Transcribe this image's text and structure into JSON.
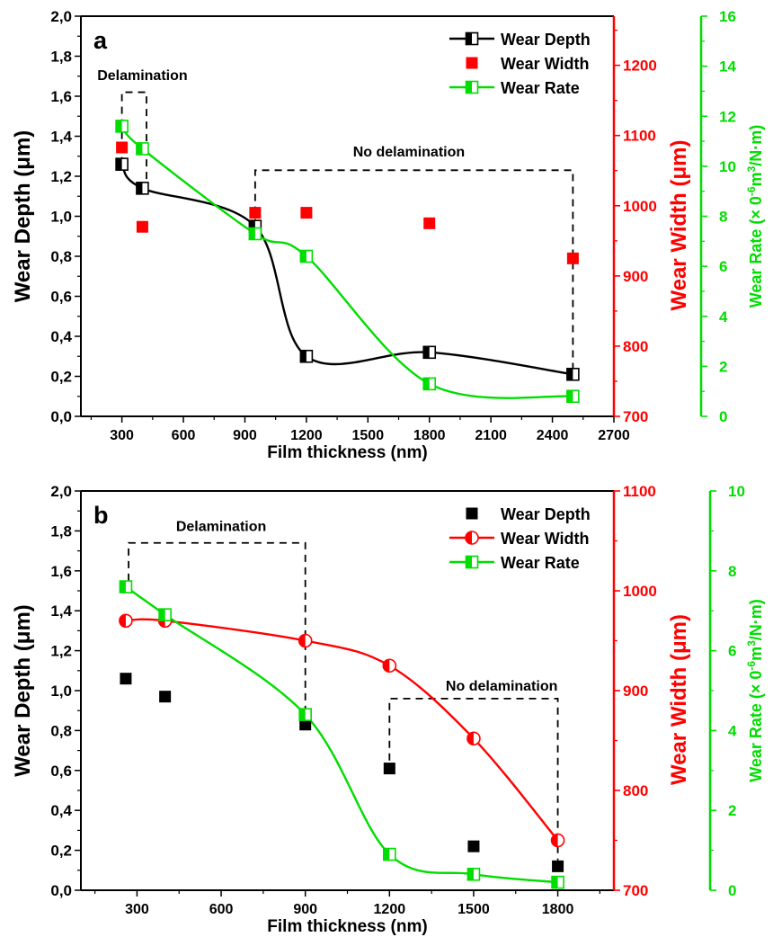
{
  "chart_data": [
    {
      "panel_label": "a",
      "type": "scatter",
      "xlabel": "Film  thickness (nm)",
      "xlim": [
        100,
        2700
      ],
      "xticks": [
        300,
        600,
        900,
        1200,
        1500,
        1800,
        2100,
        2400,
        2700
      ],
      "x_minor": [
        150,
        450,
        750,
        1050,
        1350,
        1650,
        1950,
        2250,
        2550
      ],
      "axes": {
        "left": {
          "label": "Wear Depth (μm)",
          "ylim": [
            0,
            2.0
          ],
          "ticks": [
            0,
            0.2,
            0.4,
            0.6,
            0.8,
            1.0,
            1.2,
            1.4,
            1.6,
            1.8,
            2.0
          ],
          "tick_labels": [
            "0,0",
            "0,2",
            "0,4",
            "0,6",
            "0,8",
            "1,0",
            "1,2",
            "1,4",
            "1,6",
            "1,8",
            "2,0"
          ],
          "color": "#000000"
        },
        "right1": {
          "label": "Wear Width (μm)",
          "ylim": [
            700,
            1270
          ],
          "ticks": [
            700,
            800,
            900,
            1000,
            1100,
            1200
          ],
          "tick_labels": [
            "700",
            "800",
            "900",
            "1000",
            "1100",
            "1200"
          ],
          "color": "#ff0000"
        },
        "right2": {
          "label_prefix": "Wear Rate (× 0",
          "label_sup1": "-6",
          "label_mid": "m",
          "label_sup2": "3",
          "label_suffix": "/N·m)",
          "ylim": [
            0,
            16
          ],
          "ticks": [
            0,
            2,
            4,
            6,
            8,
            10,
            12,
            14,
            16
          ],
          "tick_labels": [
            "0",
            "2",
            "4",
            "6",
            "8",
            "10",
            "12",
            "14",
            "16"
          ],
          "color": "#00dd00"
        }
      },
      "legend_position": "top-right",
      "series": [
        {
          "name": "Wear Depth",
          "axis": "left",
          "marker": "square-left-filled",
          "color": "#000000",
          "line": true,
          "x": [
            300,
            400,
            950,
            1200,
            1800,
            2500
          ],
          "y": [
            1.26,
            1.14,
            0.95,
            0.3,
            0.32,
            0.21
          ]
        },
        {
          "name": "Wear Width",
          "axis": "right1",
          "marker": "square-filled",
          "color": "#ff0000",
          "line": false,
          "x": [
            300,
            400,
            950,
            1200,
            1800,
            2500
          ],
          "y": [
            1083,
            970,
            990,
            990,
            975,
            925
          ]
        },
        {
          "name": "Wear Rate",
          "axis": "right2",
          "marker": "square-left-filled",
          "color": "#00dd00",
          "line": true,
          "x": [
            300,
            400,
            950,
            1200,
            1800,
            2500
          ],
          "y": [
            11.6,
            10.7,
            7.3,
            6.4,
            1.3,
            0.8
          ]
        }
      ],
      "annotations": [
        {
          "text": "Delamination",
          "x": 400,
          "y": 1.68
        },
        {
          "text": "No delamination",
          "x": 1700,
          "y": 1.3
        }
      ],
      "brackets": [
        {
          "x1": 300,
          "x2": 420,
          "y": 1.62,
          "y_left": 1.26,
          "y_right": 1.14
        },
        {
          "x1": 950,
          "x2": 2500,
          "y": 1.23,
          "y_left": 0.95,
          "y_right": 0.22
        }
      ]
    },
    {
      "panel_label": "b",
      "type": "scatter",
      "xlabel": "Film  thickness (nm)",
      "xlim": [
        100,
        2000
      ],
      "xticks": [
        300,
        600,
        900,
        1200,
        1500,
        1800
      ],
      "x_minor": [
        150,
        450,
        750,
        1050,
        1350,
        1650,
        1950
      ],
      "axes": {
        "left": {
          "label": "Wear Depth (μm)",
          "ylim": [
            0,
            2.0
          ],
          "ticks": [
            0,
            0.2,
            0.4,
            0.6,
            0.8,
            1.0,
            1.2,
            1.4,
            1.6,
            1.8,
            2.0
          ],
          "tick_labels": [
            "0,0",
            "0,2",
            "0,4",
            "0,6",
            "0,8",
            "1,0",
            "1,2",
            "1,4",
            "1,6",
            "1,8",
            "2,0"
          ],
          "color": "#000000"
        },
        "right1": {
          "label": "Wear Width (μm)",
          "ylim": [
            700,
            1100
          ],
          "ticks": [
            700,
            800,
            900,
            1000,
            1100
          ],
          "tick_labels": [
            "700",
            "800",
            "900",
            "1000",
            "1100"
          ],
          "color": "#ff0000"
        },
        "right2": {
          "label_prefix": "Wear Rate (× 0",
          "label_sup1": "-6",
          "label_mid": "m",
          "label_sup2": "3",
          "label_suffix": "/N·m)",
          "ylim": [
            0,
            10
          ],
          "ticks": [
            0,
            2,
            4,
            6,
            8,
            10
          ],
          "tick_labels": [
            "0",
            "2",
            "4",
            "6",
            "8",
            "10"
          ],
          "color": "#00dd00"
        }
      },
      "legend_position": "top-right",
      "series": [
        {
          "name": "Wear Depth",
          "axis": "left",
          "marker": "square-filled",
          "color": "#000000",
          "line": false,
          "x": [
            260,
            400,
            900,
            1200,
            1500,
            1800
          ],
          "y": [
            1.06,
            0.97,
            0.83,
            0.61,
            0.22,
            0.12
          ]
        },
        {
          "name": "Wear Width",
          "axis": "right1",
          "marker": "circle-left-filled",
          "color": "#ff0000",
          "line": true,
          "x": [
            260,
            400,
            900,
            1200,
            1500,
            1800
          ],
          "y": [
            970,
            970,
            950,
            925,
            852,
            750
          ]
        },
        {
          "name": "Wear Rate",
          "axis": "right2",
          "marker": "square-left-filled",
          "color": "#00dd00",
          "line": true,
          "x": [
            260,
            400,
            900,
            1200,
            1500,
            1800
          ],
          "y": [
            7.6,
            6.9,
            4.4,
            0.9,
            0.4,
            0.2
          ]
        }
      ],
      "annotations": [
        {
          "text": "Delamination",
          "x": 600,
          "y": 1.8
        },
        {
          "text": "No delamination",
          "x": 1600,
          "y": 1.0
        }
      ],
      "brackets": [
        {
          "x1": 270,
          "x2": 900,
          "y": 1.74,
          "y_left": 1.55,
          "y_right": 0.86
        },
        {
          "x1": 1200,
          "x2": 1800,
          "y": 0.96,
          "y_left": 0.65,
          "y_right": 0.15
        }
      ]
    }
  ]
}
